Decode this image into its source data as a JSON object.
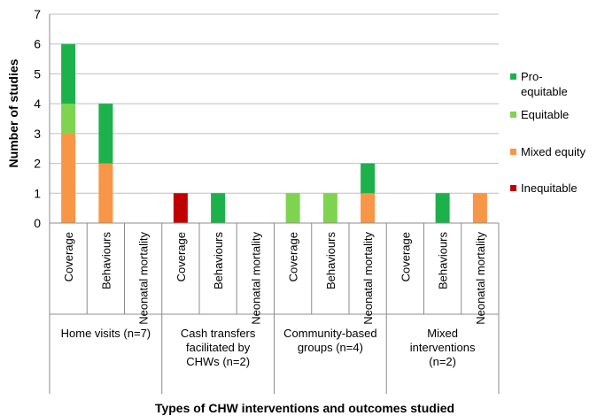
{
  "chart_data": {
    "type": "bar",
    "stacked": true,
    "xlabel": "Types of CHW interventions and outcomes studied",
    "ylabel": "Number of studies",
    "ylim": [
      0,
      7
    ],
    "yticks": [
      0,
      1,
      2,
      3,
      4,
      5,
      6,
      7
    ],
    "grid": true,
    "legend_position": "right",
    "groups": [
      {
        "label": "Home visits (n=7)",
        "categories": [
          "Coverage",
          "Behaviours",
          "Neonatal mortality"
        ]
      },
      {
        "label": "Cash transfers facilitated by CHWs (n=2)",
        "categories": [
          "Coverage",
          "Behaviours",
          "Neonatal mortality"
        ]
      },
      {
        "label": "Community-based groups (n=4)",
        "categories": [
          "Coverage",
          "Behaviours",
          "Neonatal mortality"
        ]
      },
      {
        "label": "Mixed interventions (n=2)",
        "categories": [
          "Coverage",
          "Behaviours",
          "Neonatal mortality"
        ]
      }
    ],
    "group_label_lines": [
      [
        "Home visits (n=7)"
      ],
      [
        "Cash transfers",
        "facilitated by",
        "CHWs (n=2)"
      ],
      [
        "Community-based",
        "groups (n=4)"
      ],
      [
        "Mixed",
        "interventions",
        "(n=2)"
      ]
    ],
    "categories": [
      "Coverage",
      "Behaviours",
      "Neonatal mortality",
      "Coverage",
      "Behaviours",
      "Neonatal mortality",
      "Coverage",
      "Behaviours",
      "Neonatal mortality",
      "Coverage",
      "Behaviours",
      "Neonatal mortality"
    ],
    "series": [
      {
        "name": "Inequitable",
        "color": "#c00000",
        "values": [
          0,
          0,
          0,
          1,
          0,
          0,
          0,
          0,
          0,
          0,
          0,
          0
        ]
      },
      {
        "name": "Mixed equity",
        "color": "#f79646",
        "values": [
          3,
          2,
          0,
          0,
          0,
          0,
          0,
          0,
          1,
          0,
          0,
          1
        ]
      },
      {
        "name": "Equitable",
        "color": "#7fd44f",
        "values": [
          1,
          0,
          0,
          0,
          0,
          0,
          1,
          1,
          0,
          0,
          0,
          0
        ]
      },
      {
        "name": "Pro-equitable",
        "color": "#1db14b",
        "values": [
          2,
          2,
          0,
          0,
          1,
          0,
          0,
          0,
          1,
          0,
          1,
          0
        ]
      }
    ],
    "legend": [
      {
        "label_lines": [
          "Pro-",
          "equitable"
        ],
        "color": "#1db14b"
      },
      {
        "label_lines": [
          "Equitable"
        ],
        "color": "#7fd44f"
      },
      {
        "label_lines": [
          "Mixed equity"
        ],
        "color": "#f79646"
      },
      {
        "label_lines": [
          "Inequitable"
        ],
        "color": "#c00000"
      }
    ]
  }
}
